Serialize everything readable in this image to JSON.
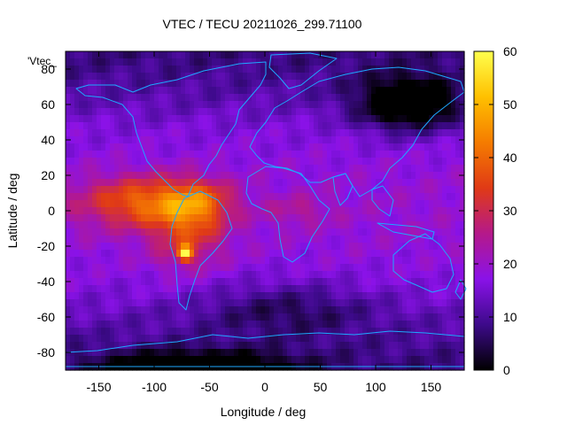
{
  "chart_data": {
    "type": "heatmap",
    "title": "VTEC / TECU 20211026_299.71100",
    "xlabel": "Longitude / deg",
    "ylabel": "Latitude / deg",
    "key_label": "'Vtec_",
    "xlim": [
      -180,
      180
    ],
    "ylim": [
      -90,
      90
    ],
    "xticks": [
      -150,
      -100,
      -50,
      0,
      50,
      100,
      150
    ],
    "yticks": [
      -80,
      -60,
      -40,
      -20,
      0,
      20,
      40,
      60,
      80
    ],
    "colorbar": {
      "range": [
        0,
        60
      ],
      "ticks": [
        0,
        10,
        20,
        30,
        40,
        50,
        60
      ],
      "palette": [
        "#000000",
        "#3d0a8a",
        "#8a12e8",
        "#b5198a",
        "#e03a16",
        "#f57c00",
        "#ffc000",
        "#ffff4d"
      ]
    },
    "features": [
      {
        "lon": -110,
        "lat": 5,
        "value": 38,
        "sx": 55,
        "sy": 14
      },
      {
        "lon": -70,
        "lat": -12,
        "value": 32,
        "sx": 32,
        "sy": 20
      },
      {
        "lon": -72,
        "lat": -24,
        "value": 55,
        "sx": 6,
        "sy": 4
      },
      {
        "lon": -60,
        "lat": 5,
        "value": 30,
        "sx": 30,
        "sy": 12
      },
      {
        "lon": 30,
        "lat": 0,
        "value": 22,
        "sx": 30,
        "sy": 8
      },
      {
        "lon": 130,
        "lat": 60,
        "value": -8,
        "sx": 45,
        "sy": 15
      },
      {
        "lon": -60,
        "lat": -90,
        "value": -6,
        "sx": 80,
        "sy": 10
      },
      {
        "lon": 20,
        "lat": -55,
        "value": 7,
        "sx": 80,
        "sy": 15
      }
    ]
  }
}
